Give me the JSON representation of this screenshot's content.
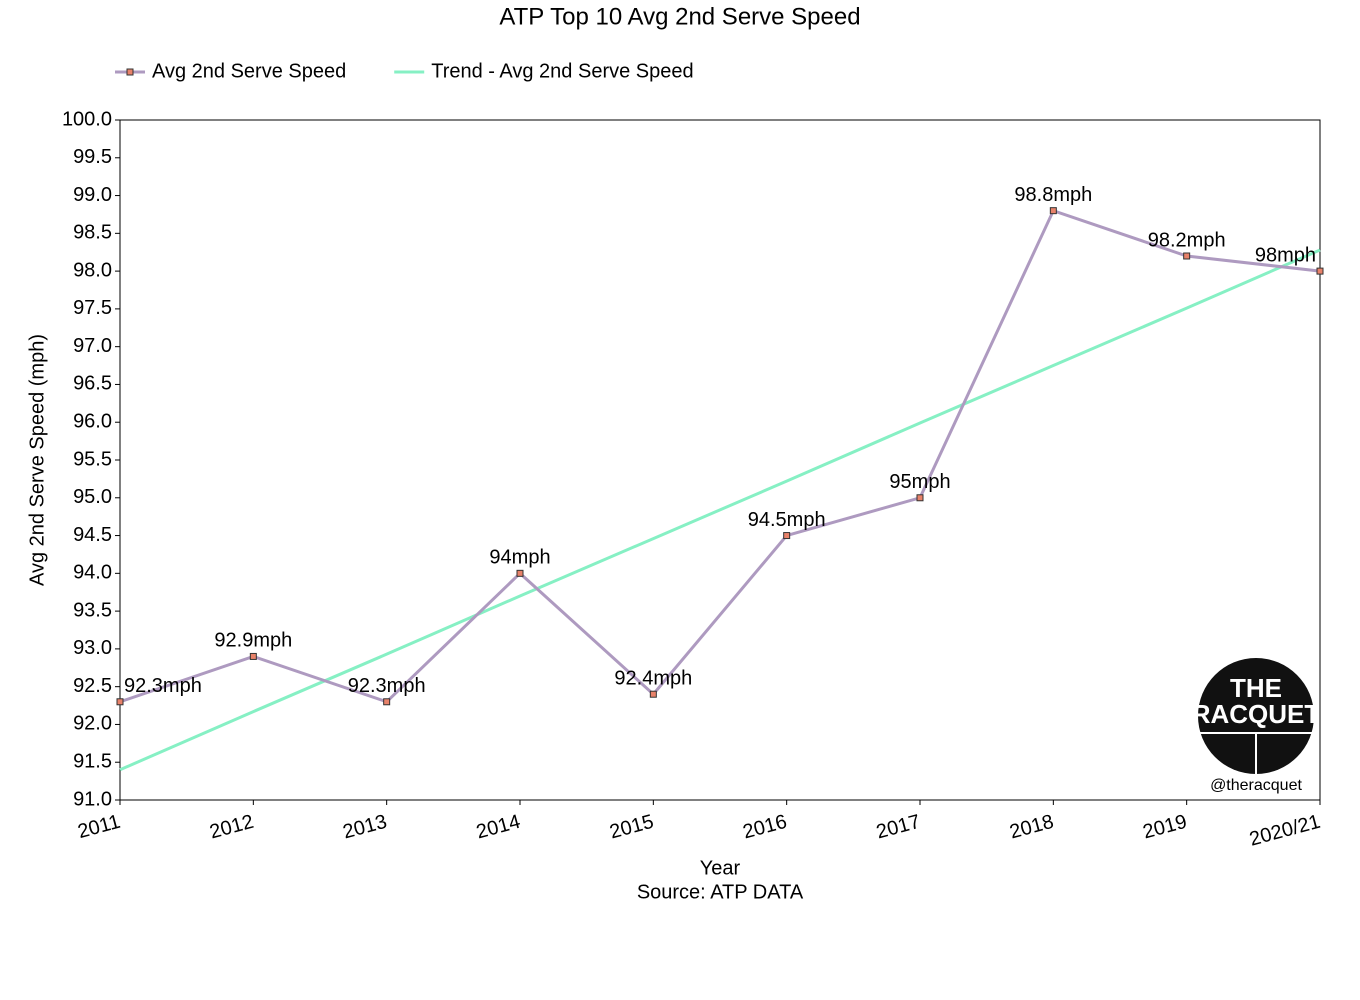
{
  "chart_data": {
    "type": "line",
    "title": "ATP Top 10 Avg 2nd Serve Speed",
    "x_label": "Year",
    "source": "Source: ATP DATA",
    "y_label": "Avg 2nd Serve Speed (mph)",
    "categories": [
      "2011",
      "2012",
      "2013",
      "2014",
      "2015",
      "2016",
      "2017",
      "2018",
      "2019",
      "2020/21"
    ],
    "series": [
      {
        "name": "Avg 2nd Serve Speed",
        "color": "#ae9ac0",
        "marker_color": "#e8826a",
        "values": [
          92.3,
          92.9,
          92.3,
          94.0,
          92.4,
          94.5,
          95.0,
          98.8,
          98.2,
          98.0
        ],
        "value_labels": [
          "92.3mph",
          "92.9mph",
          "92.3mph",
          "94mph",
          "92.4mph",
          "94.5mph",
          "95mph",
          "98.8mph",
          "98.2mph",
          "98mph"
        ]
      },
      {
        "name": "Trend - Avg 2nd Serve Speed",
        "color": "#86f0c4",
        "values": [
          91.4,
          92.17,
          92.93,
          93.7,
          94.46,
          95.22,
          95.99,
          96.75,
          97.51,
          98.28
        ]
      }
    ],
    "ylim": [
      91,
      100
    ],
    "yticks": [
      {
        "value": 91,
        "label": "91.0"
      },
      91.5,
      {
        "value": 92,
        "label": "92.0"
      },
      92.5,
      {
        "value": 93,
        "label": "93.0"
      },
      93.5,
      {
        "value": 94,
        "label": "94.0"
      },
      94.5,
      {
        "value": 95,
        "label": "95.0"
      },
      95.5,
      {
        "value": 96,
        "label": "96.0"
      },
      96.5,
      {
        "value": 97,
        "label": "97.0"
      },
      97.5,
      {
        "value": 98,
        "label": "98.0"
      },
      98.5,
      {
        "value": 99,
        "label": "99.0"
      },
      99.5,
      {
        "value": 100,
        "label": "100.0"
      }
    ],
    "logo": {
      "line1": "THE",
      "line2": "RACQUET",
      "handle": "@theracquet"
    }
  }
}
